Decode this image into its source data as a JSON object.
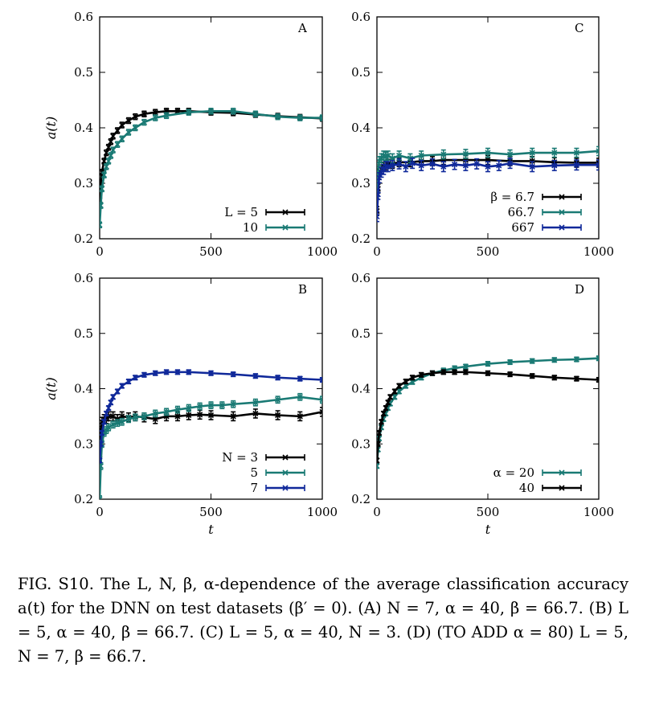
{
  "figure": {
    "caption_label": "FIG. S10.",
    "caption_text": "The L, N, β, α-dependence of the average classification accuracy a(t) for the DNN on test datasets (β′ = 0). (A) N = 7, α = 40, β = 66.7. (B) L = 5, α = 40, β = 66.7. (C) L = 5, α = 40, N = 3. (D) (TO ADD α = 80) L = 5, N = 7, β = 66.7."
  },
  "colors": {
    "black": "#000000",
    "teal": "#1a7a74",
    "blue": "#10299a"
  },
  "chart_data": [
    {
      "panel": "A",
      "type": "line",
      "xlabel": "",
      "ylabel": "a(t)",
      "xlim": [
        0,
        1000
      ],
      "ylim": [
        0.2,
        0.6
      ],
      "xticks": [
        0,
        500,
        1000
      ],
      "yticks": [
        0.2,
        0.3,
        0.4,
        0.5,
        0.6
      ],
      "legend_position": "bottom-right",
      "series": [
        {
          "name": "L = 5",
          "color": "#000000",
          "marker": "x",
          "x": [
            0,
            5,
            10,
            20,
            30,
            40,
            50,
            60,
            80,
            100,
            130,
            160,
            200,
            250,
            300,
            350,
            400,
            500,
            600,
            700,
            800,
            900,
            1000
          ],
          "y": [
            0.27,
            0.3,
            0.32,
            0.34,
            0.355,
            0.365,
            0.375,
            0.385,
            0.395,
            0.405,
            0.413,
            0.42,
            0.425,
            0.428,
            0.43,
            0.43,
            0.43,
            0.428,
            0.427,
            0.424,
            0.421,
            0.419,
            0.417
          ],
          "err": 0.005
        },
        {
          "name": "10",
          "color": "#1a7a74",
          "marker": "x",
          "x": [
            0,
            5,
            10,
            20,
            30,
            40,
            50,
            60,
            80,
            100,
            130,
            160,
            200,
            250,
            300,
            400,
            500,
            600,
            700,
            800,
            900,
            1000
          ],
          "y": [
            0.225,
            0.26,
            0.29,
            0.315,
            0.33,
            0.34,
            0.35,
            0.36,
            0.37,
            0.38,
            0.392,
            0.4,
            0.41,
            0.418,
            0.422,
            0.428,
            0.43,
            0.43,
            0.425,
            0.42,
            0.418,
            0.418
          ],
          "err": 0.005
        }
      ]
    },
    {
      "panel": "C",
      "type": "line",
      "xlabel": "",
      "ylabel": "",
      "xlim": [
        0,
        1000
      ],
      "ylim": [
        0.2,
        0.6
      ],
      "xticks": [
        0,
        500,
        1000
      ],
      "yticks": [
        0.2,
        0.3,
        0.4,
        0.5,
        0.6
      ],
      "legend_position": "bottom-right",
      "series": [
        {
          "name": "β = 6.7",
          "color": "#000000",
          "marker": "x",
          "x": [
            0,
            5,
            10,
            20,
            30,
            40,
            50,
            70,
            100,
            150,
            200,
            250,
            300,
            400,
            500,
            600,
            700,
            800,
            900,
            1000
          ],
          "y": [
            0.25,
            0.29,
            0.315,
            0.325,
            0.33,
            0.332,
            0.335,
            0.335,
            0.338,
            0.338,
            0.34,
            0.34,
            0.342,
            0.342,
            0.342,
            0.34,
            0.34,
            0.338,
            0.337,
            0.337
          ],
          "err": 0.008
        },
        {
          "name": "66.7",
          "color": "#1a7a74",
          "marker": "x",
          "x": [
            0,
            5,
            10,
            20,
            30,
            40,
            50,
            70,
            100,
            150,
            200,
            300,
            400,
            500,
            600,
            700,
            800,
            900,
            1000
          ],
          "y": [
            0.28,
            0.32,
            0.34,
            0.345,
            0.35,
            0.348,
            0.35,
            0.345,
            0.35,
            0.345,
            0.35,
            0.352,
            0.353,
            0.355,
            0.352,
            0.355,
            0.355,
            0.355,
            0.358
          ],
          "err": 0.008
        },
        {
          "name": "667",
          "color": "#10299a",
          "marker": "x",
          "x": [
            0,
            5,
            10,
            20,
            30,
            40,
            50,
            70,
            100,
            130,
            160,
            200,
            250,
            300,
            350,
            400,
            450,
            500,
            550,
            600,
            700,
            800,
            900,
            1000
          ],
          "y": [
            0.24,
            0.28,
            0.31,
            0.32,
            0.325,
            0.33,
            0.33,
            0.332,
            0.335,
            0.33,
            0.336,
            0.332,
            0.335,
            0.33,
            0.334,
            0.332,
            0.335,
            0.33,
            0.332,
            0.336,
            0.33,
            0.332,
            0.333,
            0.333
          ],
          "err": 0.009
        }
      ]
    },
    {
      "panel": "B",
      "type": "line",
      "xlabel": "t",
      "ylabel": "a(t)",
      "xlim": [
        0,
        1000
      ],
      "ylim": [
        0.2,
        0.6
      ],
      "xticks": [
        0,
        500,
        1000
      ],
      "yticks": [
        0.2,
        0.3,
        0.4,
        0.5,
        0.6
      ],
      "legend_position": "bottom-right",
      "series": [
        {
          "name": "N = 3",
          "color": "#000000",
          "marker": "x",
          "x": [
            0,
            5,
            10,
            20,
            30,
            40,
            60,
            80,
            100,
            130,
            160,
            200,
            250,
            300,
            350,
            400,
            450,
            500,
            600,
            700,
            800,
            900,
            1000
          ],
          "y": [
            0.28,
            0.32,
            0.34,
            0.345,
            0.345,
            0.35,
            0.35,
            0.345,
            0.35,
            0.348,
            0.35,
            0.348,
            0.345,
            0.35,
            0.35,
            0.352,
            0.353,
            0.352,
            0.35,
            0.355,
            0.352,
            0.35,
            0.358
          ],
          "err": 0.008
        },
        {
          "name": "5",
          "color": "#1a7a74",
          "marker": "x",
          "x": [
            0,
            5,
            10,
            20,
            30,
            40,
            60,
            80,
            100,
            130,
            160,
            200,
            250,
            300,
            350,
            400,
            450,
            500,
            550,
            600,
            700,
            800,
            900,
            1000
          ],
          "y": [
            0.2,
            0.26,
            0.3,
            0.32,
            0.325,
            0.33,
            0.335,
            0.338,
            0.34,
            0.345,
            0.348,
            0.35,
            0.355,
            0.358,
            0.362,
            0.365,
            0.368,
            0.37,
            0.37,
            0.372,
            0.375,
            0.38,
            0.385,
            0.38
          ],
          "err": 0.006
        },
        {
          "name": "7",
          "color": "#10299a",
          "marker": "x",
          "x": [
            0,
            5,
            10,
            20,
            30,
            40,
            50,
            60,
            80,
            100,
            130,
            160,
            200,
            250,
            300,
            350,
            400,
            500,
            600,
            700,
            800,
            900,
            1000
          ],
          "y": [
            0.27,
            0.3,
            0.32,
            0.34,
            0.355,
            0.365,
            0.375,
            0.385,
            0.395,
            0.405,
            0.413,
            0.42,
            0.425,
            0.428,
            0.43,
            0.43,
            0.43,
            0.428,
            0.426,
            0.423,
            0.42,
            0.418,
            0.416
          ],
          "err": 0.004
        }
      ]
    },
    {
      "panel": "D",
      "type": "line",
      "xlabel": "t",
      "ylabel": "",
      "xlim": [
        0,
        1000
      ],
      "ylim": [
        0.2,
        0.6
      ],
      "xticks": [
        0,
        500,
        1000
      ],
      "yticks": [
        0.2,
        0.3,
        0.4,
        0.5,
        0.6
      ],
      "legend_position": "bottom-right",
      "series": [
        {
          "name": "α = 20",
          "color": "#1a7a74",
          "marker": "x",
          "x": [
            0,
            5,
            10,
            20,
            30,
            40,
            50,
            60,
            80,
            100,
            130,
            160,
            200,
            250,
            300,
            350,
            400,
            500,
            600,
            700,
            800,
            900,
            1000
          ],
          "y": [
            0.26,
            0.29,
            0.31,
            0.33,
            0.345,
            0.355,
            0.365,
            0.373,
            0.385,
            0.395,
            0.405,
            0.412,
            0.42,
            0.428,
            0.433,
            0.437,
            0.44,
            0.445,
            0.448,
            0.45,
            0.452,
            0.453,
            0.455
          ],
          "err": 0.004
        },
        {
          "name": "40",
          "color": "#000000",
          "marker": "x",
          "x": [
            0,
            5,
            10,
            20,
            30,
            40,
            50,
            60,
            80,
            100,
            130,
            160,
            200,
            250,
            300,
            350,
            400,
            500,
            600,
            700,
            800,
            900,
            1000
          ],
          "y": [
            0.27,
            0.3,
            0.32,
            0.34,
            0.355,
            0.365,
            0.375,
            0.385,
            0.395,
            0.405,
            0.413,
            0.42,
            0.425,
            0.428,
            0.43,
            0.43,
            0.43,
            0.428,
            0.426,
            0.423,
            0.42,
            0.418,
            0.416
          ],
          "err": 0.004
        }
      ]
    }
  ]
}
